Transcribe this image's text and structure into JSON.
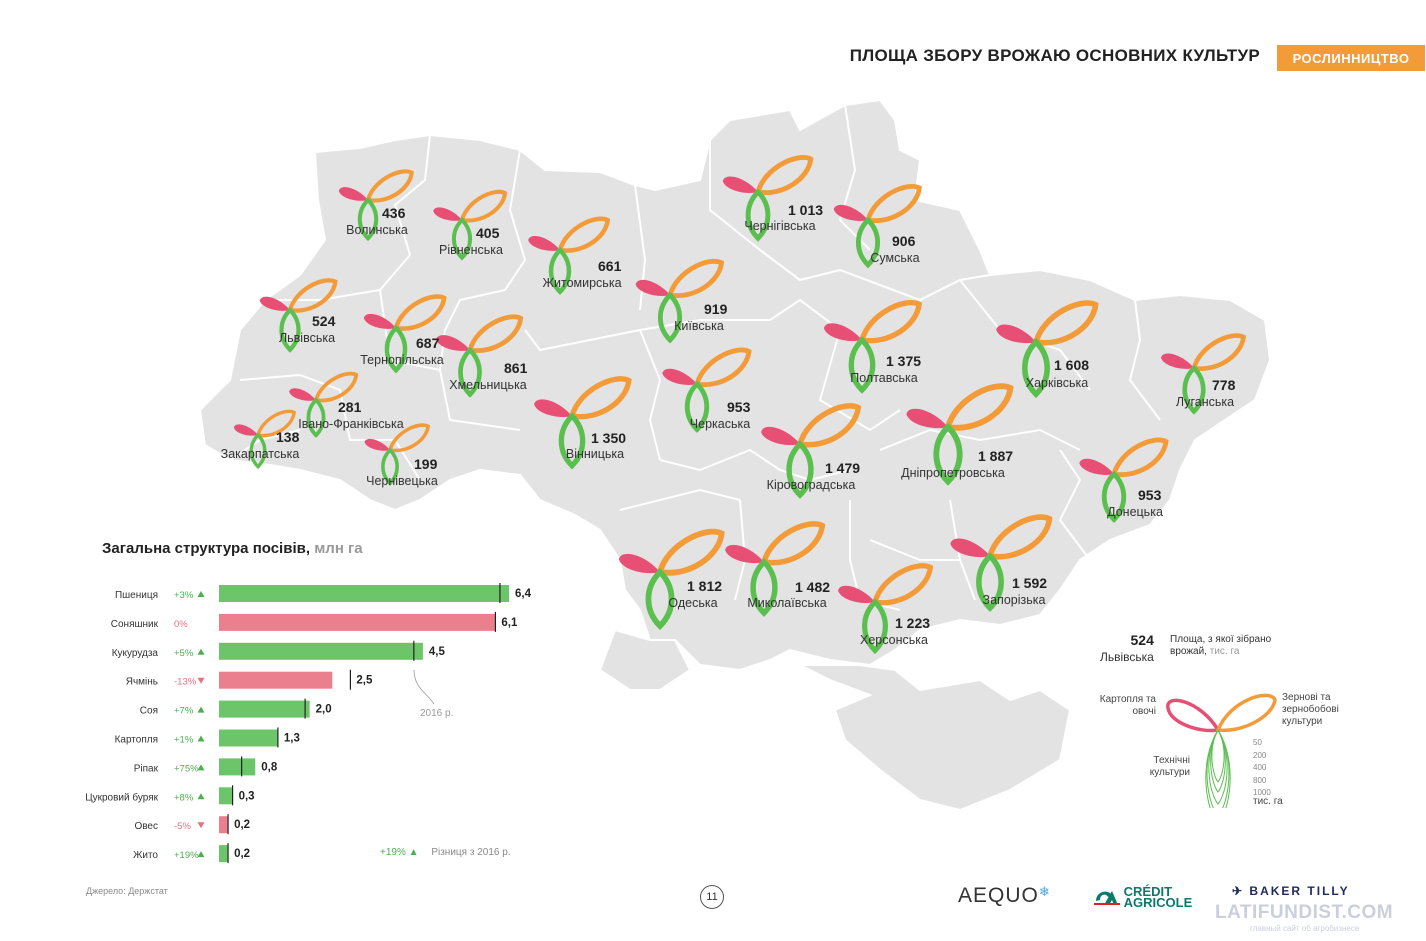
{
  "header": {
    "title": "ПЛОЩА ЗБОРУ ВРОЖАЮ ОСНОВНИХ КУЛЬТУР",
    "section": "РОСЛИННИЦТВО"
  },
  "colors": {
    "grains": "#f39b38",
    "vegetables": "#e84f74",
    "technical": "#5bbf4f",
    "bar_up": "#6dc56a",
    "bar_down": "#ec7f8e",
    "map_fill": "#e3e3e3"
  },
  "regions": [
    {
      "name": "Волинська",
      "value": "436"
    },
    {
      "name": "Рівненська",
      "value": "405"
    },
    {
      "name": "Житомирська",
      "value": "661"
    },
    {
      "name": "Чернігівська",
      "value": "1 013"
    },
    {
      "name": "Сумська",
      "value": "906"
    },
    {
      "name": "Львівська",
      "value": "524"
    },
    {
      "name": "Тернопільська",
      "value": "687"
    },
    {
      "name": "Хмельницька",
      "value": "861"
    },
    {
      "name": "Київська",
      "value": "919"
    },
    {
      "name": "Полтавська",
      "value": "1 375"
    },
    {
      "name": "Харківська",
      "value": "1 608"
    },
    {
      "name": "Луганська",
      "value": "778"
    },
    {
      "name": "Івано-Франківська",
      "value": "281"
    },
    {
      "name": "Закарпатська",
      "value": "138"
    },
    {
      "name": "Чернівецька",
      "value": "199"
    },
    {
      "name": "Вінницька",
      "value": "1 350"
    },
    {
      "name": "Черкаська",
      "value": "953"
    },
    {
      "name": "Кіровоградська",
      "value": "1 479"
    },
    {
      "name": "Дніпропетровська",
      "value": "1 887"
    },
    {
      "name": "Донецька",
      "value": "953"
    },
    {
      "name": "Одеська",
      "value": "1 812"
    },
    {
      "name": "Миколаївська",
      "value": "1 482"
    },
    {
      "name": "Херсонська",
      "value": "1 223"
    },
    {
      "name": "Запорізька",
      "value": "1 592"
    }
  ],
  "legend": {
    "example_value": "524",
    "example_region": "Львівська",
    "desc": "Площа, з якої зібрано врожай,",
    "desc_unit": "тис. га",
    "vegetables": "Картопля та овочі",
    "grains": "Зернові та зернобобові культури",
    "technical": "Технічні культури",
    "scale": [
      "50",
      "200",
      "400",
      "800",
      "1000"
    ],
    "scale_unit": "тис. га"
  },
  "chart_title": "Загальна структура посівів,",
  "chart_unit": "млн га",
  "chart_data": {
    "type": "bar",
    "orientation": "horizontal",
    "title": "Загальна структура посівів, млн га",
    "categories": [
      "Пшениця",
      "Соняшник",
      "Кукурудза",
      "Ячмінь",
      "Соя",
      "Картопля",
      "Ріпак",
      "Цукровий буряк",
      "Овес",
      "Жито"
    ],
    "values": [
      6.4,
      6.1,
      4.5,
      2.5,
      2.0,
      1.3,
      0.8,
      0.3,
      0.2,
      0.2
    ],
    "value_labels": [
      "6,4",
      "6,1",
      "4,5",
      "2,5",
      "2,0",
      "1,3",
      "0,8",
      "0,3",
      "0,2",
      "0,2"
    ],
    "change_labels": [
      "+3%",
      "0%",
      "+5%",
      "-13%",
      "+7%",
      "+1%",
      "+75%",
      "+8%",
      "-5%",
      "+19%"
    ],
    "change_direction": [
      "up",
      "flat",
      "up",
      "down",
      "up",
      "up",
      "up",
      "up",
      "down",
      "up"
    ],
    "values_2016": [
      6.2,
      6.1,
      4.3,
      2.9,
      1.9,
      1.3,
      0.5,
      0.3,
      0.2,
      0.2
    ],
    "reference_label": "2016 р.",
    "xlim": [
      0,
      6.4
    ]
  },
  "diff_legend": {
    "pct": "+19%",
    "label": "Різниця з 2016 р."
  },
  "source": "Джерело: Держстат",
  "page_number": "11",
  "logos": {
    "aequo": "AEQUO",
    "ca_line1": "CRÉDIT",
    "ca_line2": "AGRICOLE",
    "baker": "BAKER TILLY",
    "watermark": "LATIFUNDIST.COM",
    "watermark_sub": "главный сайт об агробизнесе"
  }
}
